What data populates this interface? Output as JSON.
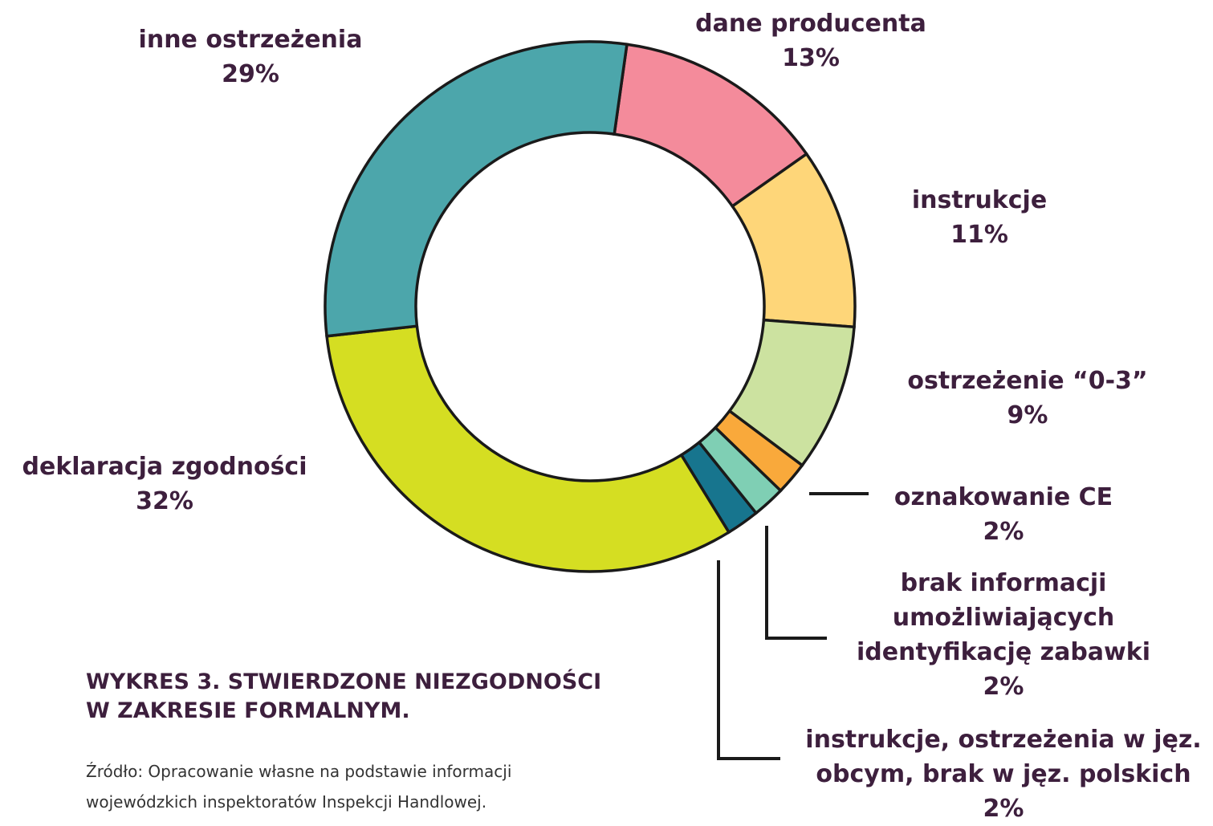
{
  "chart_data": {
    "type": "donut",
    "title": "WYKRES 3. STWIERDZONE NIEZGODNOŚCI\nW ZAKRESIE FORMALNYM.",
    "source": "Źródło: Opracowanie własne na podstawie informacji\nwojewódzkich inspektoratów Inspekcji Handlowej.",
    "categories": [
      "dane producenta",
      "instrukcje",
      "ostrzeżenie “0-3”",
      "oznakowanie CE",
      "brak informacji\numożliwiających\nidentyfikację zabawki",
      "instrukcje, ostrzeżenia w jęz.\nobcym, brak w jęz. polskich",
      "deklaracja zgodności",
      "inne ostrzeżenia"
    ],
    "values": [
      13,
      11,
      9,
      2,
      2,
      2,
      32,
      29
    ],
    "value_labels": [
      "13%",
      "11%",
      "9%",
      "2%",
      "2%",
      "2%",
      "32%",
      "29%"
    ],
    "colors": [
      "#f48b9b",
      "#fed679",
      "#cce2a0",
      "#f9a93b",
      "#7fcfb4",
      "#17758e",
      "#d5de22",
      "#4ca6ab"
    ]
  }
}
